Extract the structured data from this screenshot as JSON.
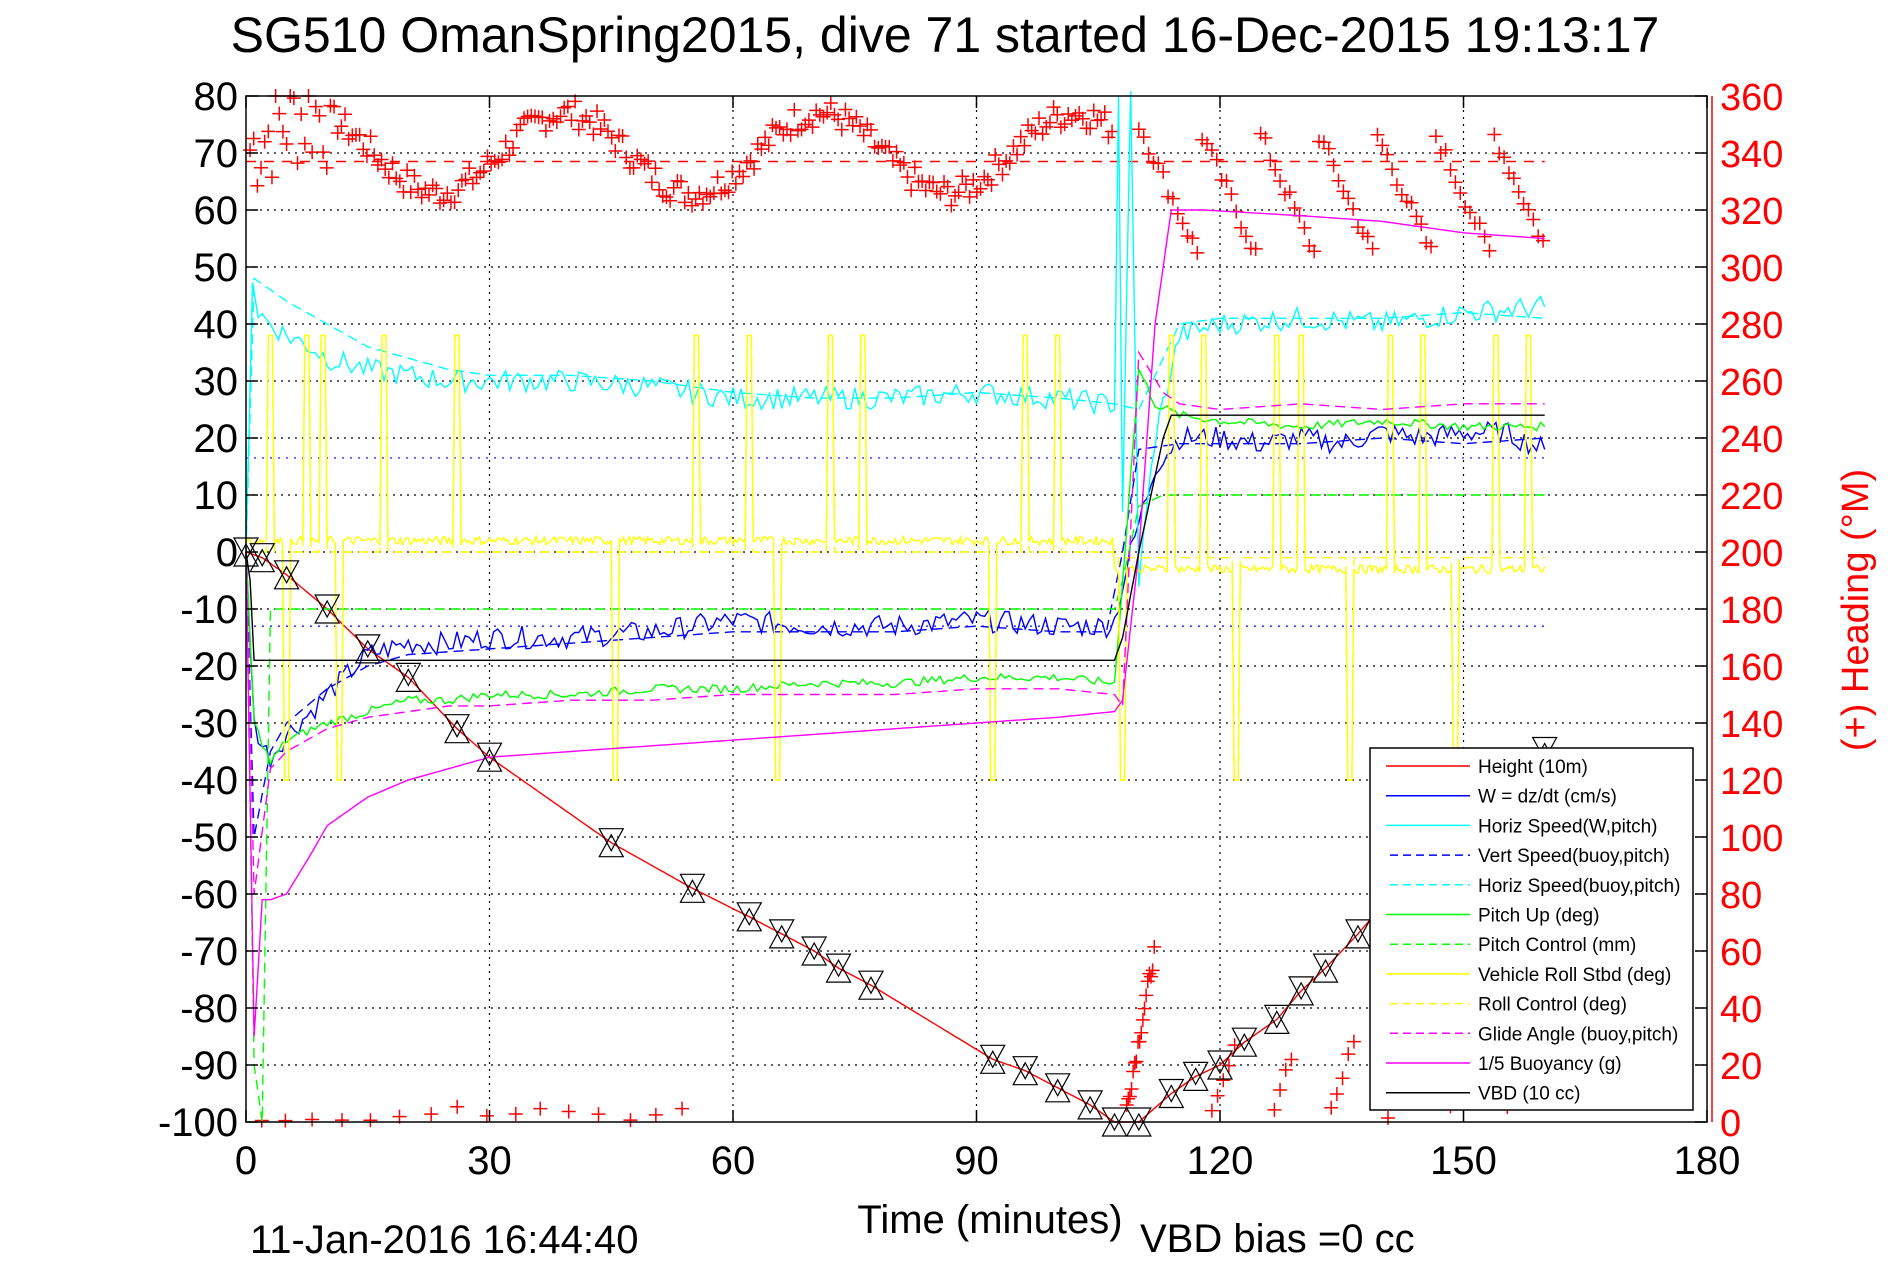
{
  "chart_data": {
    "type": "line",
    "title": "SG510 OmanSpring2015, dive 71 started 16-Dec-2015 19:13:17",
    "xlabel": "Time (minutes)",
    "ylabel_right": "(+) Heading (°M)",
    "footer_left": "11-Jan-2016 16:44:40",
    "footer_right": "VBD bias =0 cc",
    "xlim": [
      0,
      180
    ],
    "ylim": [
      -100,
      80
    ],
    "ylim_right": [
      0,
      360
    ],
    "grid": true,
    "legend_position": "bottom-right",
    "x_ticks": [
      "0",
      "30",
      "60",
      "90",
      "120",
      "150",
      "180"
    ],
    "x_tick_values": [
      0,
      30,
      60,
      90,
      120,
      150,
      180
    ],
    "y_ticks": [
      "80",
      "70",
      "60",
      "50",
      "40",
      "30",
      "20",
      "10",
      "0",
      "-10",
      "-20",
      "-30",
      "-40",
      "-50",
      "-60",
      "-70",
      "-80",
      "-90",
      "-100"
    ],
    "y_tick_values": [
      80,
      70,
      60,
      50,
      40,
      30,
      20,
      10,
      0,
      -10,
      -20,
      -30,
      -40,
      -50,
      -60,
      -70,
      -80,
      -90,
      -100
    ],
    "y_right_ticks": [
      "360",
      "340",
      "320",
      "300",
      "280",
      "260",
      "240",
      "220",
      "200",
      "180",
      "160",
      "140",
      "120",
      "100",
      "80",
      "60",
      "40",
      "20",
      "0"
    ],
    "y_right_tick_values": [
      360,
      340,
      320,
      300,
      280,
      260,
      240,
      220,
      200,
      180,
      160,
      140,
      120,
      100,
      80,
      60,
      40,
      20,
      0
    ],
    "heading_mean": 337,
    "reference_lines_blue_dotted": [
      16.5,
      -13
    ],
    "series": [
      {
        "name": "Height (10m)",
        "color": "#ff0000",
        "style": "solid",
        "x": [
          0,
          2,
          5,
          10,
          15,
          20,
          26,
          30,
          45,
          55,
          62,
          66,
          70,
          73,
          77,
          92,
          96,
          100,
          104,
          107,
          110,
          114,
          117,
          120,
          123,
          127,
          130,
          133,
          137,
          140,
          145,
          150,
          160
        ],
        "y": [
          0,
          -1,
          -4,
          -10,
          -17,
          -22,
          -31,
          -36,
          -51,
          -59,
          -64,
          -67,
          -70,
          -73,
          -76,
          -89,
          -91,
          -94,
          -97,
          -100,
          -100,
          -95,
          -92,
          -90,
          -86,
          -82,
          -77,
          -73,
          -67,
          -62,
          -55,
          -48,
          -35
        ]
      },
      {
        "name": "W = dz/dt (cm/s)",
        "color": "#0000ff",
        "style": "solid",
        "x": [
          0,
          1,
          2,
          3,
          5,
          8,
          10,
          15,
          20,
          25,
          30,
          40,
          50,
          60,
          70,
          80,
          90,
          100,
          106,
          107,
          109,
          112,
          115,
          120,
          125,
          130,
          135,
          140,
          145,
          150,
          155,
          160
        ],
        "y": [
          0,
          -30,
          -34,
          -36,
          -32,
          -28,
          -25,
          -18,
          -16,
          -16,
          -15,
          -15,
          -14,
          -12,
          -13,
          -13,
          -12,
          -13,
          -13,
          -12,
          0,
          15,
          20,
          20,
          19,
          20,
          19,
          21,
          20,
          21,
          21,
          18
        ]
      },
      {
        "name": "Horiz Speed(W,pitch)",
        "color": "#00ffff",
        "style": "solid",
        "x": [
          0,
          0.8,
          1.5,
          3,
          5,
          8,
          10,
          15,
          20,
          25,
          30,
          40,
          50,
          60,
          70,
          80,
          90,
          100,
          106,
          107,
          107.5,
          108,
          109,
          110,
          112,
          115,
          120,
          130,
          140,
          150,
          160
        ],
        "y": [
          0,
          48,
          42,
          40,
          38,
          36,
          34,
          32,
          31,
          30,
          30,
          30,
          29,
          27,
          27,
          27,
          28,
          27,
          26,
          26,
          80,
          8,
          80,
          -5,
          20,
          38,
          40,
          41,
          40,
          42,
          43
        ]
      },
      {
        "name": "Vert Speed(buoy,pitch)",
        "color": "#0000ff",
        "style": "dashed",
        "x": [
          0,
          1,
          3,
          5,
          10,
          15,
          20,
          30,
          40,
          50,
          60,
          70,
          80,
          90,
          100,
          106,
          108,
          110,
          115,
          120,
          130,
          140,
          150,
          160
        ],
        "y": [
          0,
          -50,
          -35,
          -30,
          -24,
          -20,
          -18,
          -17,
          -16,
          -15,
          -14,
          -14,
          -14,
          -13,
          -14,
          -14,
          0,
          18,
          19,
          19,
          19,
          20,
          19,
          20
        ]
      },
      {
        "name": "Horiz Speed(buoy,pitch)",
        "color": "#00ffff",
        "style": "dashed",
        "x": [
          0,
          1,
          3,
          5,
          10,
          15,
          20,
          25,
          30,
          40,
          50,
          60,
          70,
          80,
          90,
          100,
          107,
          110,
          115,
          120,
          130,
          140,
          150,
          160
        ],
        "y": [
          0,
          48,
          46,
          44,
          40,
          36,
          34,
          32,
          31,
          31,
          30,
          28,
          27,
          27,
          28,
          27,
          26,
          25,
          40,
          41,
          41,
          41,
          42,
          41
        ]
      },
      {
        "name": "Pitch Up (deg)",
        "color": "#00ff00",
        "style": "solid",
        "x": [
          0,
          1,
          3,
          5,
          10,
          15,
          20,
          25,
          30,
          40,
          50,
          60,
          70,
          80,
          90,
          100,
          107,
          108,
          110,
          112,
          115,
          120,
          130,
          140,
          150,
          160
        ],
        "y": [
          0,
          -30,
          -37,
          -33,
          -30,
          -28,
          -26,
          -26,
          -25,
          -25,
          -24,
          -24,
          -23,
          -23,
          -22,
          -22,
          -23,
          -5,
          32,
          26,
          24,
          23,
          22,
          23,
          22,
          22
        ]
      },
      {
        "name": "Pitch Control (mm)",
        "color": "#00ff00",
        "style": "dashed",
        "x": [
          0,
          1,
          2,
          3,
          10,
          20,
          30,
          40,
          50,
          60,
          70,
          80,
          90,
          100,
          107,
          108,
          110,
          113,
          120,
          130,
          140,
          150,
          160
        ],
        "y": [
          0,
          -90,
          -100,
          -10,
          -10,
          -10,
          -10,
          -10,
          -10,
          -10,
          -10,
          -10,
          -10,
          -10,
          -10,
          -5,
          8,
          10,
          10,
          10,
          10,
          10,
          10
        ]
      },
      {
        "name": "Vehicle Roll Stbd (deg)",
        "color": "#ffff00",
        "style": "solid",
        "x": [
          0,
          5,
          10,
          20,
          30,
          40,
          50,
          60,
          70,
          80,
          90,
          100,
          107,
          110,
          120,
          130,
          140,
          150,
          160
        ],
        "y": [
          0,
          1,
          1,
          2,
          2,
          2,
          2,
          2,
          2,
          2,
          2,
          2,
          2,
          0,
          -3,
          -3,
          -3,
          -3,
          -3
        ],
        "note": "periodic roll spikes to ~38 and ~-40"
      },
      {
        "name": "Roll Control (deg)",
        "color": "#ffff00",
        "style": "dashed",
        "x": [
          0,
          10,
          20,
          30,
          40,
          50,
          60,
          70,
          80,
          90,
          100,
          107,
          110,
          120,
          130,
          140,
          150,
          160
        ],
        "y": [
          0,
          0,
          0,
          0,
          0,
          0,
          0,
          0,
          0,
          0,
          0,
          0,
          0,
          0,
          0,
          0,
          0,
          0
        ]
      },
      {
        "name": "Glide Angle (buoy,pitch)",
        "color": "#ff00ff",
        "style": "dashed",
        "x": [
          0,
          1,
          3,
          5,
          10,
          15,
          20,
          25,
          30,
          40,
          50,
          60,
          70,
          80,
          90,
          100,
          107,
          108,
          110,
          113,
          115,
          120,
          130,
          140,
          150,
          160
        ],
        "y": [
          0,
          -60,
          -38,
          -35,
          -31,
          -29,
          -28,
          -27,
          -27,
          -26,
          -26,
          -25,
          -25,
          -25,
          -24,
          -24,
          -25,
          -27,
          35,
          28,
          26,
          25,
          26,
          25,
          26,
          26
        ]
      },
      {
        "name": "1/5 Buoyancy (g)",
        "color": "#ff00ff",
        "style": "solid",
        "x": [
          0,
          1,
          2,
          3,
          5,
          8,
          10,
          15,
          20,
          25,
          30,
          40,
          50,
          60,
          70,
          80,
          90,
          100,
          107,
          108,
          110,
          112,
          114,
          118,
          130,
          140,
          150,
          160
        ],
        "y": [
          0,
          -85,
          -61,
          -61,
          -60,
          -53,
          -48,
          -43,
          -40,
          -38,
          -36,
          -35,
          -34,
          -33,
          -32,
          -31,
          -30,
          -29,
          -28,
          -26,
          0,
          40,
          60,
          60,
          59,
          58,
          56,
          55
        ]
      },
      {
        "name": "VBD (10 cc)",
        "color": "#000000",
        "style": "solid",
        "x": [
          0,
          0.5,
          1,
          2,
          100,
          107,
          108,
          110,
          113,
          114,
          160
        ],
        "y": [
          0,
          -5,
          -19,
          -19,
          -19,
          -19,
          -15,
          0,
          20,
          24,
          24
        ]
      }
    ],
    "heading_points_note": "Heading (+) scatter on right axis, clusters 310-360 during descent and 320-350/0-60 during climb"
  }
}
